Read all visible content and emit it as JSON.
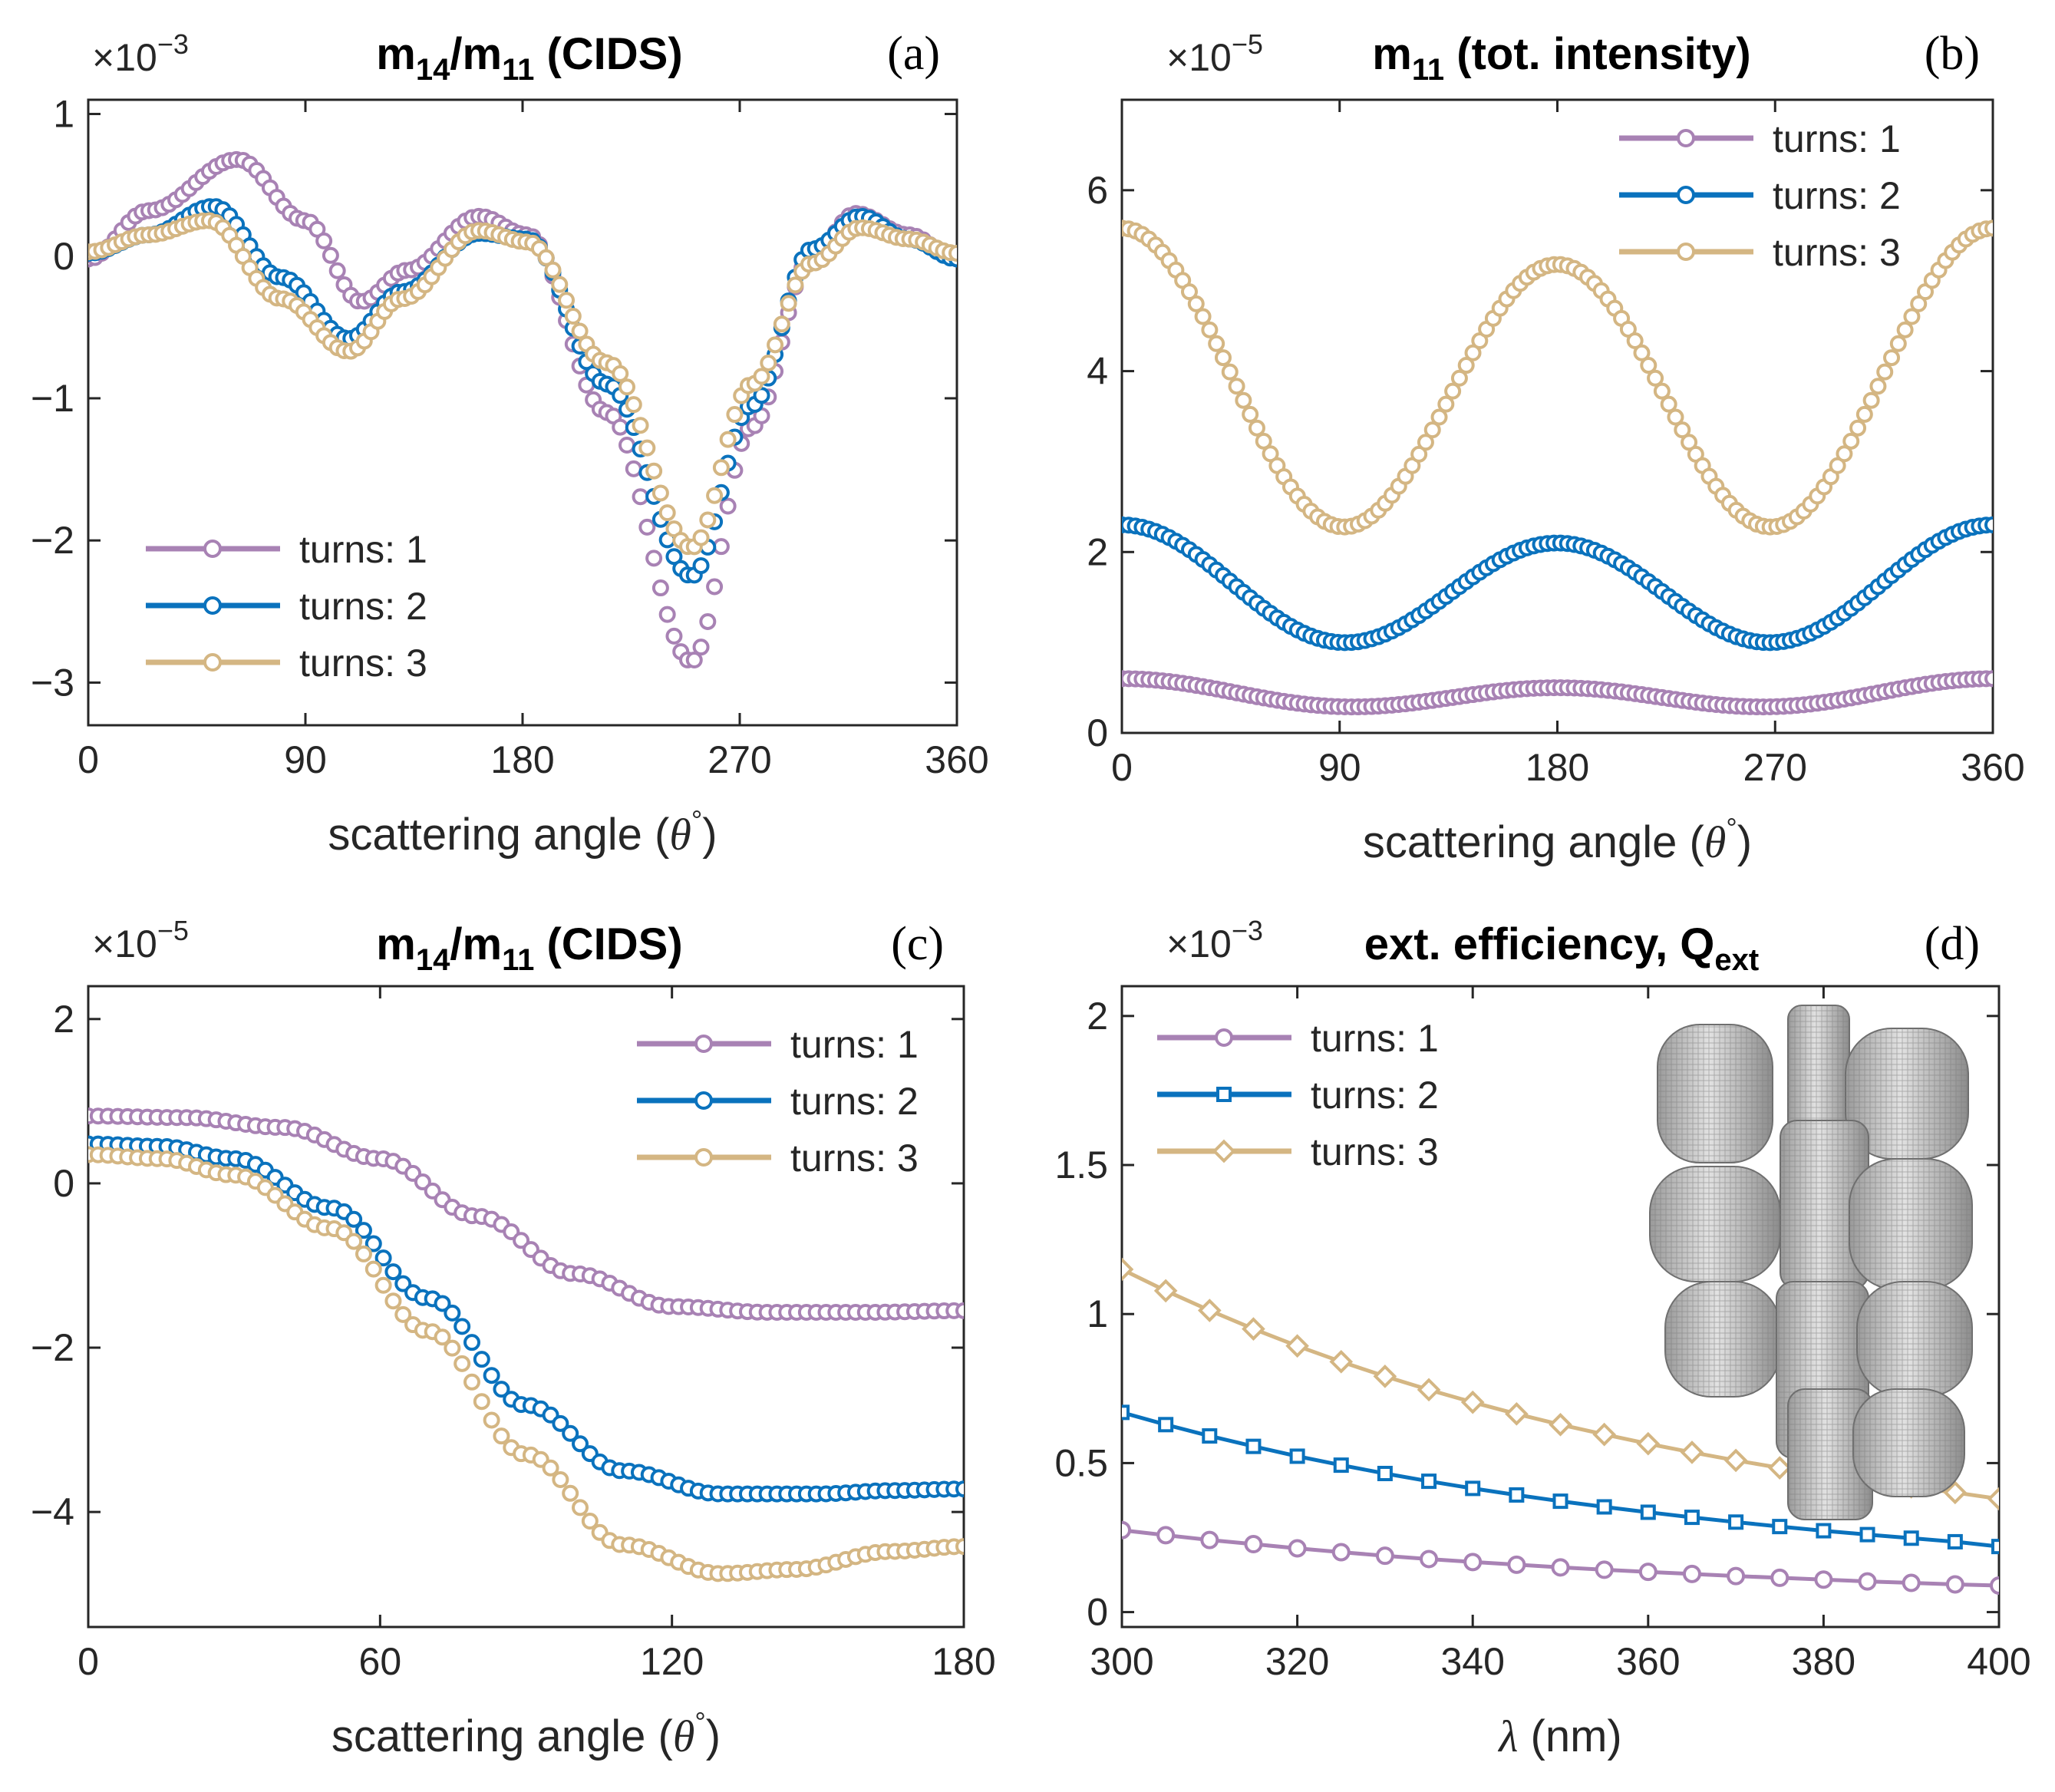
{
  "colors": {
    "turns1": "#A882B4",
    "turns2": "#0A72BD",
    "turns3": "#D4B683"
  },
  "inset_image": {
    "icon": "helical-nanostructure-render"
  },
  "chart_data": [
    {
      "id": "a",
      "type": "scatter",
      "tag": "(a)",
      "title": "m14/m11 (CIDS)",
      "title_parts": {
        "base1": "m",
        "sub1": "14",
        "slash": "/m",
        "sub2": "11",
        "rest": " (CIDS)"
      },
      "exponent": {
        "prefix": "×10",
        "power": "−3"
      },
      "xlabel": "scattering angle (θ°)",
      "xlabel_parts": {
        "text": "scattering angle (",
        "theta": "θ",
        "deg": "°",
        "close": ")"
      },
      "xlim": [
        0,
        360
      ],
      "ylim": [
        -3.3,
        1.1
      ],
      "xticks": [
        0,
        90,
        180,
        270,
        360
      ],
      "xtick_labels": [
        "0",
        "90",
        "180",
        "270",
        "360"
      ],
      "yticks": [
        -3,
        -2,
        -1,
        0,
        1
      ],
      "ytick_labels": [
        "−3",
        "−2",
        "−1",
        "0",
        "1"
      ],
      "legend_position": "bottom-left",
      "marker": "circle",
      "gen": {
        "type": "keypoints",
        "x0": 0,
        "x1": 360,
        "n": 130,
        "series": [
          {
            "name": "turns: 1",
            "legend": "turns: 1",
            "color_key": "turns1",
            "keys": [
              [
                0,
                -0.02
              ],
              [
                25,
                0.32
              ],
              [
                62,
                0.68
              ],
              [
                90,
                0.25
              ],
              [
                113,
                -0.32
              ],
              [
                132,
                -0.1
              ],
              [
                162,
                0.28
              ],
              [
                182,
                0.15
              ],
              [
                215,
                -1.1
              ],
              [
                250,
                -2.85
              ],
              [
                275,
                -1.2
              ],
              [
                300,
                0.0
              ],
              [
                318,
                0.3
              ],
              [
                340,
                0.15
              ],
              [
                360,
                -0.02
              ]
            ]
          },
          {
            "name": "turns: 2",
            "legend": "turns: 2",
            "color_key": "turns2",
            "keys": [
              [
                0,
                0.02
              ],
              [
                25,
                0.15
              ],
              [
                52,
                0.35
              ],
              [
                80,
                -0.15
              ],
              [
                108,
                -0.58
              ],
              [
                130,
                -0.25
              ],
              [
                162,
                0.16
              ],
              [
                182,
                0.12
              ],
              [
                215,
                -0.9
              ],
              [
                250,
                -2.25
              ],
              [
                275,
                -1.05
              ],
              [
                300,
                0.05
              ],
              [
                320,
                0.28
              ],
              [
                340,
                0.12
              ],
              [
                360,
                -0.02
              ]
            ]
          },
          {
            "name": "turns: 3",
            "legend": "turns: 3",
            "color_key": "turns3",
            "keys": [
              [
                0,
                0.03
              ],
              [
                25,
                0.15
              ],
              [
                50,
                0.25
              ],
              [
                80,
                -0.3
              ],
              [
                108,
                -0.67
              ],
              [
                130,
                -0.3
              ],
              [
                162,
                0.18
              ],
              [
                182,
                0.1
              ],
              [
                215,
                -0.75
              ],
              [
                250,
                -2.05
              ],
              [
                275,
                -0.9
              ],
              [
                300,
                -0.05
              ],
              [
                320,
                0.2
              ],
              [
                340,
                0.12
              ],
              [
                360,
                0.02
              ]
            ]
          }
        ]
      }
    },
    {
      "id": "b",
      "type": "scatter",
      "tag": "(b)",
      "title": "m11 (tot. intensity)",
      "title_parts": {
        "base1": "m",
        "sub1": "11",
        "slash": "",
        "sub2": "",
        "rest": " (tot. intensity)"
      },
      "exponent": {
        "prefix": "×10",
        "power": "−5"
      },
      "xlabel": "scattering angle (θ°)",
      "xlabel_parts": {
        "text": "scattering angle (",
        "theta": "θ",
        "deg": "°",
        "close": ")"
      },
      "xlim": [
        0,
        360
      ],
      "ylim": [
        0,
        7
      ],
      "xticks": [
        0,
        90,
        180,
        270,
        360
      ],
      "xtick_labels": [
        "0",
        "90",
        "180",
        "270",
        "360"
      ],
      "yticks": [
        0,
        2,
        4,
        6
      ],
      "ytick_labels": [
        "0",
        "2",
        "4",
        "6"
      ],
      "legend_position": "top-right",
      "marker": "circle",
      "gen": {
        "type": "cosine",
        "x0": 0,
        "x1": 360,
        "n": 130,
        "series": [
          {
            "name": "turns: 1",
            "legend": "turns: 1",
            "color_key": "turns1",
            "a": 0.42,
            "b": 0.13,
            "c": 0.05
          },
          {
            "name": "turns: 2",
            "legend": "turns: 2",
            "color_key": "turns2",
            "a": 1.6,
            "b": 0.6,
            "c": 0.1
          },
          {
            "name": "turns: 3",
            "legend": "turns: 3",
            "color_key": "turns3",
            "a": 3.83,
            "b": 1.55,
            "c": 0.2
          }
        ]
      }
    },
    {
      "id": "c",
      "type": "scatter",
      "tag": "(c)",
      "title": "m14/m11 (CIDS)",
      "title_parts": {
        "base1": "m",
        "sub1": "14",
        "slash": "/m",
        "sub2": "11",
        "rest": " (CIDS)"
      },
      "exponent": {
        "prefix": "×10",
        "power": "−5"
      },
      "xlabel": "scattering angle (θ°)",
      "xlabel_parts": {
        "text": "scattering angle (",
        "theta": "θ",
        "deg": "°",
        "close": ")"
      },
      "xlim": [
        0,
        180
      ],
      "ylim": [
        -5.4,
        2.4
      ],
      "xticks": [
        0,
        60,
        120,
        180
      ],
      "xtick_labels": [
        "0",
        "60",
        "120",
        "180"
      ],
      "yticks": [
        -4,
        -2,
        0,
        2
      ],
      "ytick_labels": [
        "−4",
        "−2",
        "0",
        "2"
      ],
      "legend_position": "top-right",
      "marker": "circle",
      "gen": {
        "type": "keypoints",
        "x0": 0,
        "x1": 180,
        "n": 90,
        "series": [
          {
            "name": "turns: 1",
            "legend": "turns: 1",
            "color_key": "turns1",
            "keys": [
              [
                0,
                0.82
              ],
              [
                20,
                0.8
              ],
              [
                40,
                0.68
              ],
              [
                60,
                0.3
              ],
              [
                80,
                -0.4
              ],
              [
                100,
                -1.1
              ],
              [
                120,
                -1.5
              ],
              [
                140,
                -1.57
              ],
              [
                160,
                -1.57
              ],
              [
                180,
                -1.55
              ]
            ]
          },
          {
            "name": "turns: 2",
            "legend": "turns: 2",
            "color_key": "turns2",
            "keys": [
              [
                0,
                0.48
              ],
              [
                15,
                0.45
              ],
              [
                30,
                0.3
              ],
              [
                50,
                -0.3
              ],
              [
                70,
                -1.4
              ],
              [
                90,
                -2.7
              ],
              [
                110,
                -3.5
              ],
              [
                130,
                -3.78
              ],
              [
                150,
                -3.78
              ],
              [
                165,
                -3.74
              ],
              [
                180,
                -3.72
              ]
            ]
          },
          {
            "name": "turns: 3",
            "legend": "turns: 3",
            "color_key": "turns3",
            "keys": [
              [
                0,
                0.35
              ],
              [
                15,
                0.3
              ],
              [
                30,
                0.1
              ],
              [
                50,
                -0.55
              ],
              [
                70,
                -1.8
              ],
              [
                90,
                -3.3
              ],
              [
                110,
                -4.4
              ],
              [
                130,
                -4.75
              ],
              [
                145,
                -4.7
              ],
              [
                165,
                -4.48
              ],
              [
                180,
                -4.42
              ]
            ]
          }
        ]
      }
    },
    {
      "id": "d",
      "type": "line",
      "tag": "(d)",
      "title": "ext. efficiency, Qext",
      "title_parts": {
        "base1": "ext. efficiency, Q",
        "sub1": "ext",
        "slash": "",
        "sub2": "",
        "rest": ""
      },
      "exponent": {
        "prefix": "×10",
        "power": "−3"
      },
      "xlabel": "λ (nm)",
      "xlabel_parts": {
        "text": "",
        "theta": "λ",
        "deg": "",
        "close": " (nm)"
      },
      "xlim": [
        300,
        400
      ],
      "ylim": [
        -0.05,
        2.1
      ],
      "xticks": [
        300,
        320,
        340,
        360,
        380,
        400
      ],
      "xtick_labels": [
        "300",
        "320",
        "340",
        "360",
        "380",
        "400"
      ],
      "yticks": [
        0,
        0.5,
        1,
        1.5,
        2
      ],
      "ytick_labels": [
        "0",
        "0.5",
        "1",
        "1.5",
        "2"
      ],
      "legend_position": "top-left",
      "x": [
        300,
        305,
        310,
        315,
        320,
        325,
        330,
        335,
        340,
        345,
        350,
        355,
        360,
        365,
        370,
        375,
        380,
        385,
        390,
        395,
        400
      ],
      "series": [
        {
          "name": "turns: 1",
          "legend": "turns: 1",
          "color_key": "turns1",
          "marker": "circle",
          "values": [
            0.275,
            0.258,
            0.242,
            0.228,
            0.214,
            0.201,
            0.189,
            0.178,
            0.168,
            0.159,
            0.15,
            0.142,
            0.135,
            0.128,
            0.121,
            0.115,
            0.109,
            0.103,
            0.098,
            0.093,
            0.089
          ]
        },
        {
          "name": "turns: 2",
          "legend": "turns: 2",
          "color_key": "turns2",
          "marker": "square",
          "values": [
            0.67,
            0.629,
            0.591,
            0.556,
            0.523,
            0.493,
            0.465,
            0.439,
            0.415,
            0.393,
            0.372,
            0.353,
            0.335,
            0.318,
            0.302,
            0.287,
            0.273,
            0.26,
            0.248,
            0.236,
            0.22
          ]
        },
        {
          "name": "turns: 3",
          "legend": "turns: 3",
          "color_key": "turns3",
          "marker": "diamond",
          "values": [
            1.15,
            1.078,
            1.012,
            0.95,
            0.893,
            0.84,
            0.791,
            0.746,
            0.704,
            0.665,
            0.629,
            0.596,
            0.565,
            0.536,
            0.509,
            0.484,
            0.461,
            0.44,
            0.42,
            0.401,
            0.38
          ]
        }
      ]
    }
  ]
}
